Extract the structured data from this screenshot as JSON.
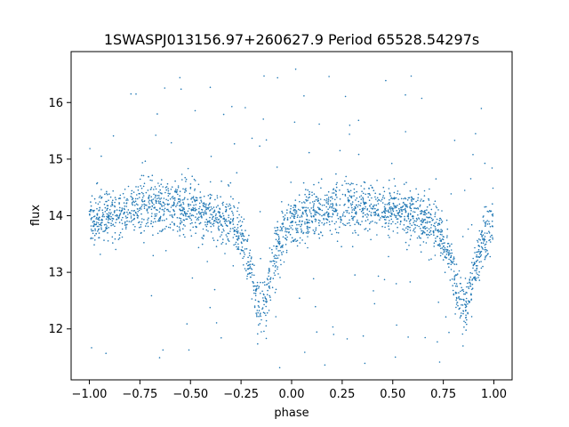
{
  "chart_data": {
    "type": "scatter",
    "title": "1SWASPJ013156.97+260627.9 Period 65528.54297s",
    "xlabel": "phase",
    "ylabel": "flux",
    "xlim": [
      -1.09,
      1.09
    ],
    "ylim": [
      11.1,
      16.9
    ],
    "x_ticks": [
      -1.0,
      -0.75,
      -0.5,
      -0.25,
      0.0,
      0.25,
      0.5,
      0.75,
      1.0
    ],
    "x_tick_labels": [
      "−1.00",
      "−0.75",
      "−0.50",
      "−0.25",
      "0.00",
      "0.25",
      "0.50",
      "0.75",
      "1.00"
    ],
    "y_ticks": [
      12,
      13,
      14,
      15,
      16
    ],
    "y_tick_labels": [
      "12",
      "13",
      "14",
      "15",
      "16"
    ],
    "grid": false,
    "legend": "none",
    "point_color": "#1f77b4",
    "series": [
      {
        "baseline_curve": {
          "phase": [
            -1.0,
            -0.9,
            -0.8,
            -0.7,
            -0.6,
            -0.5,
            -0.4,
            -0.3,
            -0.25,
            -0.2,
            -0.17,
            -0.15,
            -0.13,
            -0.1,
            -0.05,
            0.0,
            0.1,
            0.2,
            0.3,
            0.4,
            0.5,
            0.6,
            0.7,
            0.75,
            0.8,
            0.83,
            0.85,
            0.87,
            0.9,
            0.95,
            1.0
          ],
          "flux": [
            13.9,
            14.0,
            14.1,
            14.2,
            14.15,
            14.1,
            14.0,
            13.85,
            13.6,
            13.0,
            12.5,
            12.3,
            12.5,
            13.0,
            13.7,
            13.85,
            14.0,
            14.1,
            14.2,
            14.15,
            14.1,
            14.0,
            13.85,
            13.6,
            13.0,
            12.5,
            12.3,
            12.5,
            13.0,
            13.6,
            13.9
          ]
        },
        "scatter_spread": 0.22,
        "outlier_range": [
          11.3,
          16.6
        ]
      }
    ]
  }
}
